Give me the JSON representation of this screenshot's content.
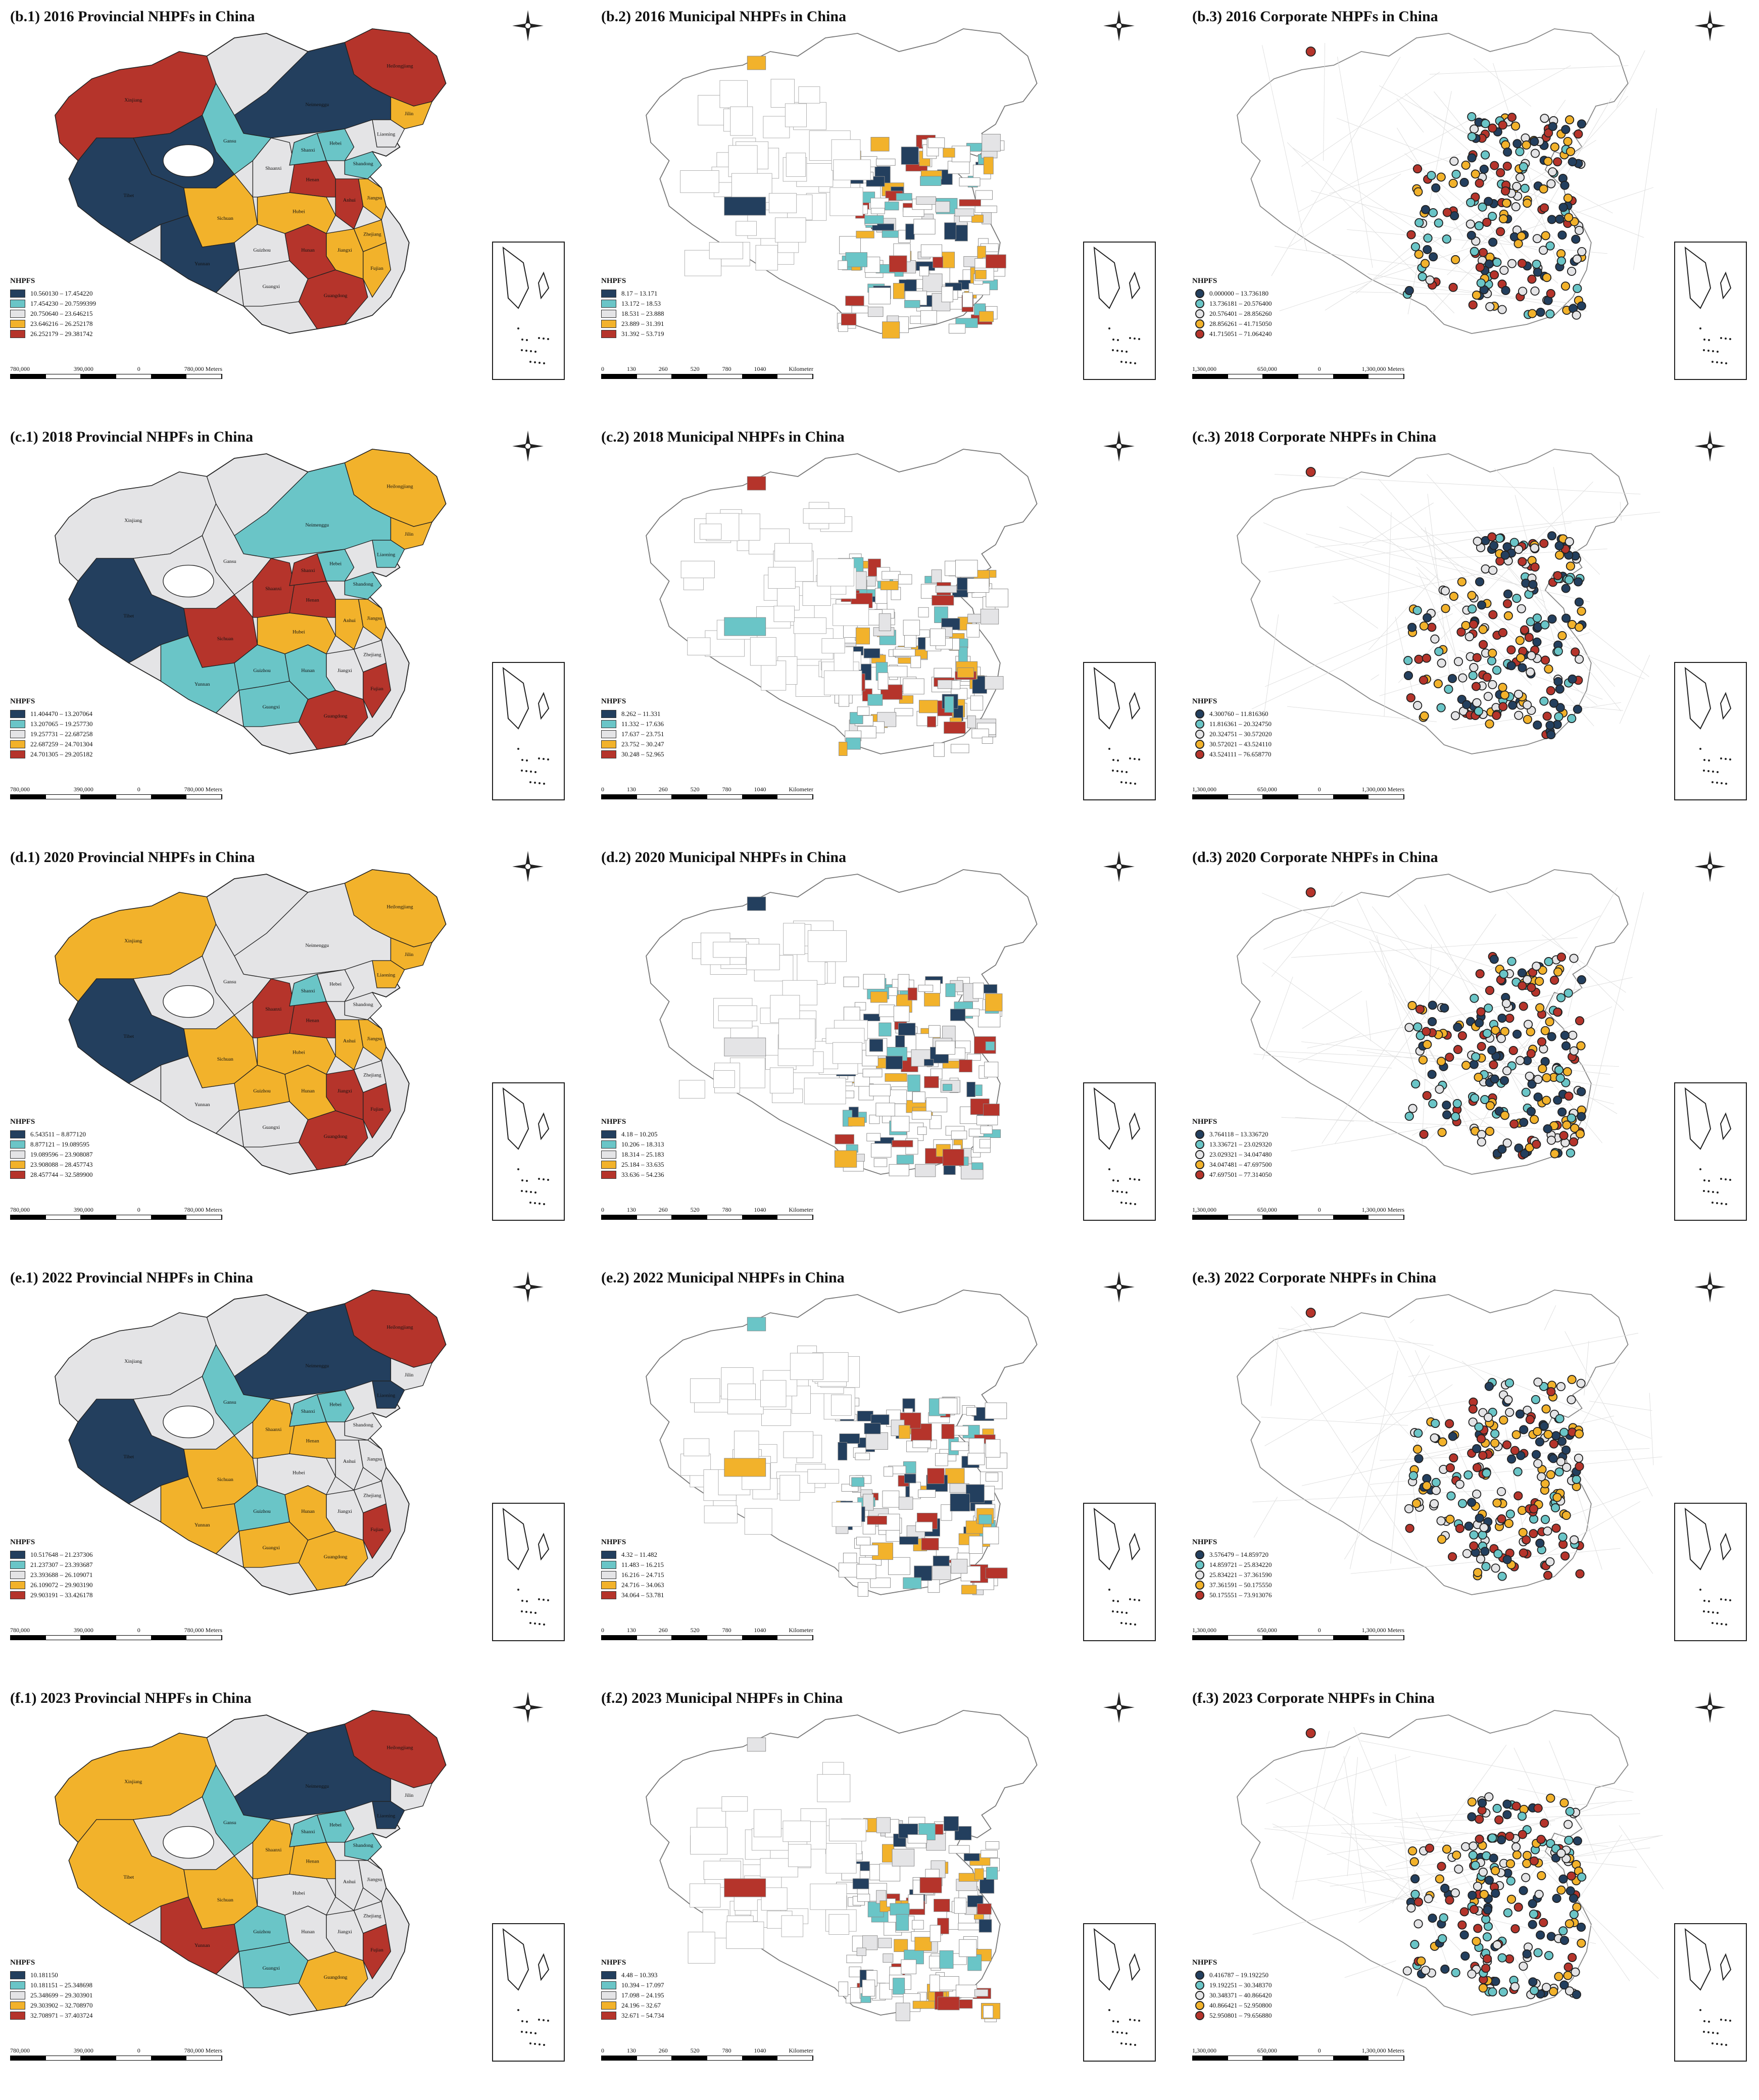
{
  "legend_title": "NHPFS",
  "legend_colors": [
    "#233f5e",
    "#6ac5c7",
    "#e4e4e6",
    "#f2b22b",
    "#b5342b"
  ],
  "province_labels": [
    "Heilongjiang",
    "Jilin",
    "Liaoning",
    "Neimenggu",
    "Xinjiang",
    "Gansu",
    "Qinghai",
    "Tibet",
    "Sichuan",
    "Yunnan",
    "Guizhou",
    "Guangxi",
    "Guangdong",
    "Fujian",
    "Jiangxi",
    "Hunan",
    "Hubei",
    "Henan",
    "Shaanxi",
    "Shanxi",
    "Hebei",
    "Shandong",
    "Anhui",
    "Zhejiang",
    "Jiangsu"
  ],
  "scale_units": {
    "provincial": "Meters",
    "municipal": "Kilometer",
    "corporate": "Meters"
  },
  "scale_ticks": {
    "provincial": [
      "780,000",
      "390,000",
      "0",
      "780,000 Meters"
    ],
    "municipal": [
      "0",
      "130",
      "260",
      "520",
      "780",
      "1040"
    ],
    "corporate": [
      "1,300,000",
      "650,000",
      "0",
      "1,300,000 Meters"
    ]
  },
  "rows": [
    {
      "panels": [
        {
          "title": "(b.1) 2016 Provincial NHPFs in China",
          "kind": "provincial",
          "legend": [
            "10.560130 – 17.454220",
            "17.454230 – 20.7599399",
            "20.750640 – 23.646215",
            "23.646216 – 26.252178",
            "26.252179 – 29.381742"
          ],
          "palette": [
            4,
            3,
            2,
            0,
            4,
            1,
            0,
            0,
            3,
            0,
            2,
            2,
            4,
            3,
            3,
            4,
            3,
            4,
            2,
            1,
            1,
            1,
            4,
            3,
            3
          ]
        },
        {
          "title": "(b.2) 2016 Municipal NHPFs in China",
          "kind": "municipal",
          "legend": [
            "8.17 – 13.171",
            "13.172 – 18.53",
            "18.531 – 23.888",
            "23.889 – 31.391",
            "31.392 – 53.719"
          ]
        },
        {
          "title": "(b.3) 2016 Corporate NHPFs in China",
          "kind": "corporate",
          "legend": [
            "0.000000 – 13.736180",
            "13.736181 – 20.576400",
            "20.576401 – 28.856260",
            "28.856261 – 41.715050",
            "41.715051 – 71.064240"
          ]
        }
      ]
    },
    {
      "panels": [
        {
          "title": "(c.1) 2018 Provincial NHPFs in China",
          "kind": "provincial",
          "legend": [
            "11.404470 – 13.207064",
            "13.207065 – 19.257730",
            "19.257731 – 22.687258",
            "22.687259 – 24.701304",
            "24.701305 – 29.205182"
          ],
          "palette": [
            3,
            3,
            1,
            1,
            2,
            2,
            2,
            0,
            4,
            1,
            1,
            1,
            4,
            4,
            2,
            1,
            3,
            4,
            4,
            4,
            1,
            1,
            3,
            2,
            3
          ]
        },
        {
          "title": "(c.2) 2018 Municipal NHPFs in China",
          "kind": "municipal",
          "legend": [
            "8.262 – 11.331",
            "11.332 – 17.636",
            "17.637 – 23.751",
            "23.752 – 30.247",
            "30.248 – 52.965"
          ]
        },
        {
          "title": "(c.3) 2018 Corporate NHPFs in China",
          "kind": "corporate",
          "legend": [
            "4.300760 – 11.816360",
            "11.816361 – 20.324750",
            "20.324751 – 30.572020",
            "30.572021 – 43.524110",
            "43.524111 – 76.658770"
          ]
        }
      ]
    },
    {
      "panels": [
        {
          "title": "(d.1) 2020 Provincial NHPFs in China",
          "kind": "provincial",
          "legend": [
            "6.543511 – 8.877120",
            "8.877121 – 19.089595",
            "19.089596 – 23.908087",
            "23.908088 – 28.457743",
            "28.457744 – 32.589900"
          ],
          "palette": [
            3,
            3,
            3,
            2,
            3,
            2,
            2,
            0,
            3,
            2,
            3,
            2,
            4,
            4,
            4,
            3,
            3,
            4,
            4,
            1,
            2,
            2,
            3,
            2,
            3
          ]
        },
        {
          "title": "(d.2) 2020 Municipal NHPFs in China",
          "kind": "municipal",
          "legend": [
            "4.18 – 10.205",
            "10.206 – 18.313",
            "18.314 – 25.183",
            "25.184 – 33.635",
            "33.636 – 54.236"
          ]
        },
        {
          "title": "(d.3) 2020 Corporate NHPFs in China",
          "kind": "corporate",
          "legend": [
            "3.764118 – 13.336720",
            "13.336721 – 23.029320",
            "23.029321 – 34.047480",
            "34.047481 – 47.697500",
            "47.697501 – 77.314050"
          ]
        }
      ]
    },
    {
      "panels": [
        {
          "title": "(e.1) 2022 Provincial NHPFs in China",
          "kind": "provincial",
          "legend": [
            "10.517648 – 21.237306",
            "21.237307 – 23.393687",
            "23.393688 – 26.109071",
            "26.109072 – 29.903190",
            "29.903191 – 33.426178"
          ],
          "palette": [
            4,
            2,
            0,
            0,
            2,
            1,
            2,
            0,
            3,
            3,
            1,
            3,
            3,
            4,
            2,
            3,
            2,
            3,
            3,
            1,
            1,
            2,
            2,
            2,
            2
          ]
        },
        {
          "title": "(e.2) 2022 Municipal NHPFs in China",
          "kind": "municipal",
          "legend": [
            "4.32 – 11.482",
            "11.483 – 16.215",
            "16.216 – 24.715",
            "24.716 – 34.063",
            "34.064 – 53.781"
          ]
        },
        {
          "title": "(e.3) 2022 Corporate NHPFs in China",
          "kind": "corporate",
          "legend": [
            "3.576479 – 14.859720",
            "14.859721 – 25.834220",
            "25.834221 – 37.361590",
            "37.361591 – 50.175550",
            "50.175551 – 73.913076"
          ]
        }
      ]
    },
    {
      "panels": [
        {
          "title": "(f.1) 2023 Provincial NHPFs in China",
          "kind": "provincial",
          "legend": [
            "10.181150",
            "10.181151 – 25.348698",
            "25.348699 – 29.303901",
            "29.303902 – 32.708970",
            "32.708971 – 37.403724"
          ],
          "palette": [
            4,
            2,
            0,
            0,
            3,
            1,
            2,
            3,
            3,
            4,
            1,
            1,
            3,
            4,
            2,
            2,
            2,
            3,
            3,
            1,
            1,
            1,
            2,
            2,
            2
          ]
        },
        {
          "title": "(f.2) 2023 Municipal NHPFs in China",
          "kind": "municipal",
          "legend": [
            "4.48 – 10.393",
            "10.394 – 17.097",
            "17.098 – 24.195",
            "24.196 – 32.67",
            "32.671 – 54.734"
          ]
        },
        {
          "title": "(f.3) 2023 Corporate NHPFs in China",
          "kind": "corporate",
          "legend": [
            "0.416787 – 19.192250",
            "19.192251 – 30.348370",
            "30.348371 – 40.866420",
            "40.866421 – 52.950800",
            "52.950801 – 79.656880"
          ]
        }
      ]
    }
  ]
}
